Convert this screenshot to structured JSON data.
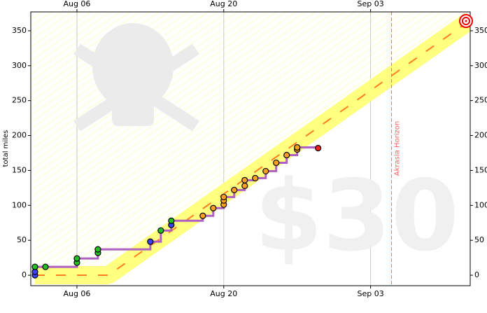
{
  "chart_data": {
    "type": "step",
    "y_label": "total miles",
    "watermark": "$30",
    "horizon_label": "Akrasia Horizon",
    "horizon_x": 36,
    "xlim": [
      1.6,
      43.5
    ],
    "xticks": [
      {
        "value": 6,
        "label": "Aug 06"
      },
      {
        "value": 20,
        "label": "Aug 20"
      },
      {
        "value": 34,
        "label": "Sep 03"
      }
    ],
    "ylim": [
      -15,
      377
    ],
    "yticks": [
      0,
      50,
      100,
      150,
      200,
      250,
      300,
      350
    ],
    "grid": true,
    "road": {
      "color": "#ffff80",
      "line_color": "#ff7f20",
      "x": [
        2,
        9,
        43.5
      ],
      "values": [
        0,
        0,
        365
      ]
    },
    "step_color": "#b060c0",
    "datapoints": {
      "x": [
        2,
        2,
        2,
        3,
        6,
        6,
        8,
        8,
        13,
        14,
        15,
        15,
        18,
        19,
        20,
        20,
        20,
        21,
        22,
        22,
        23,
        24,
        25,
        26,
        27,
        27,
        29
      ],
      "values": [
        0,
        5,
        12,
        12,
        18,
        24,
        32,
        37,
        48,
        64,
        72,
        78,
        85,
        96,
        101,
        107,
        112,
        122,
        128,
        136,
        139,
        149,
        161,
        172,
        180,
        183,
        182
      ],
      "colors": [
        "#4040ff",
        "#4040ff",
        "#20c020",
        "#20c020",
        "#20c020",
        "#20c020",
        "#20c020",
        "#20c020",
        "#4040ff",
        "#20c020",
        "#4040ff",
        "#20c020",
        "#ffa020",
        "#ffa020",
        "#ffa020",
        "#ffa020",
        "#ffa020",
        "#ffa020",
        "#ffa020",
        "#ffa020",
        "#ffa020",
        "#ffa020",
        "#ffa020",
        "#ffa020",
        "#ffa020",
        "#ffa020",
        "#ff2020"
      ]
    }
  }
}
